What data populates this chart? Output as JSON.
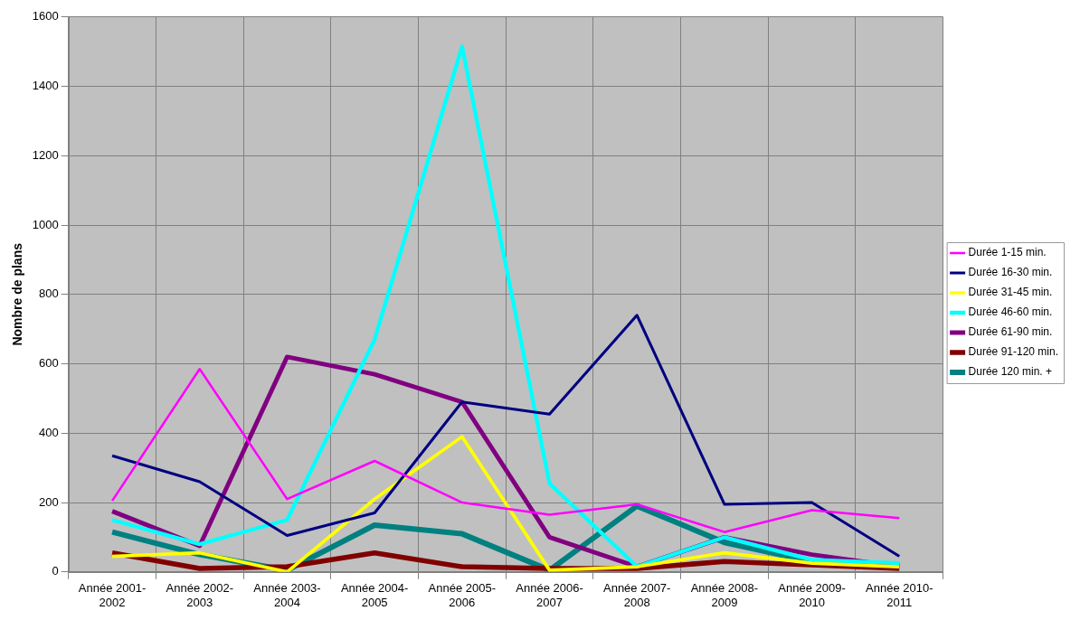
{
  "chart_data": {
    "type": "line",
    "ylabel": "Nombre de plans",
    "categories": [
      "Année 2001-2002",
      "Année 2002-2003",
      "Année 2003-2004",
      "Année 2004-2005",
      "Année 2005-2006",
      "Année 2006-2007",
      "Année 2007-2008",
      "Année 2008-2009",
      "Année 2009-2010",
      "Année 2010-2011"
    ],
    "series": [
      {
        "name": "Durée 1-15 min.",
        "color": "#ff00ff",
        "values": [
          205,
          585,
          210,
          320,
          200,
          165,
          195,
          115,
          178,
          155
        ]
      },
      {
        "name": "Durée 16-30 min.",
        "color": "#000080",
        "values": [
          335,
          260,
          105,
          170,
          490,
          455,
          740,
          195,
          200,
          45
        ]
      },
      {
        "name": "Durée 31-45 min.",
        "color": "#ffff00",
        "values": [
          45,
          55,
          0,
          210,
          390,
          5,
          15,
          55,
          25,
          15
        ]
      },
      {
        "name": "Durée 46-60 min.",
        "color": "#00ffff",
        "values": [
          150,
          80,
          150,
          670,
          1515,
          255,
          15,
          100,
          35,
          25
        ]
      },
      {
        "name": "Durée 61-90 min.",
        "color": "#800080",
        "values": [
          175,
          75,
          620,
          570,
          490,
          100,
          15,
          100,
          50,
          15
        ]
      },
      {
        "name": "Durée 91-120 min.",
        "color": "#800000",
        "values": [
          55,
          10,
          15,
          55,
          15,
          10,
          10,
          30,
          20,
          10
        ]
      },
      {
        "name": "Durée 120 min. +",
        "color": "#008080",
        "values": [
          115,
          50,
          5,
          135,
          110,
          5,
          190,
          85,
          30,
          20
        ]
      }
    ],
    "ylim": [
      0,
      1600
    ],
    "yticks": [
      0,
      200,
      400,
      600,
      800,
      1000,
      1200,
      1400,
      1600
    ],
    "grid": true,
    "legend": "right",
    "marker": "none",
    "line_style": "solid"
  }
}
